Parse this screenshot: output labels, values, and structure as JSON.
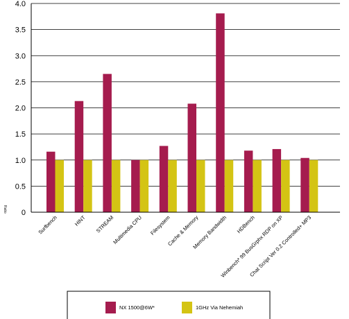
{
  "chart_data": {
    "type": "bar",
    "title": "",
    "xlabel": "",
    "ylabel": "Ratio",
    "ylim": [
      0,
      4.0
    ],
    "yticks": [
      "0",
      "0.5",
      "1.0",
      "1.5",
      "2.0",
      "2.5",
      "3.0",
      "3.5",
      "4.0"
    ],
    "grid": true,
    "legend_position": "bottom",
    "categories": [
      "Surfbench",
      "HINT",
      "STREAM",
      "Multimedia CPU",
      "Filesystem",
      "Cache & Memory",
      "Memory Bandwidth",
      "HDBench",
      "Winbench* 99 BusGrphx RDP on XP",
      "Chat Script Ver 0.2 Controlled+ MP3"
    ],
    "series": [
      {
        "name": "NX 1500@6W*",
        "color": "#a51c4e",
        "values": [
          1.16,
          2.13,
          2.65,
          1.0,
          1.27,
          2.08,
          3.81,
          1.18,
          1.21,
          1.04
        ]
      },
      {
        "name": "1GHz Via Nehemiah",
        "color": "#d4c414",
        "values": [
          1.0,
          1.0,
          1.0,
          1.0,
          1.0,
          1.0,
          1.0,
          1.0,
          1.0,
          1.0
        ]
      }
    ]
  }
}
